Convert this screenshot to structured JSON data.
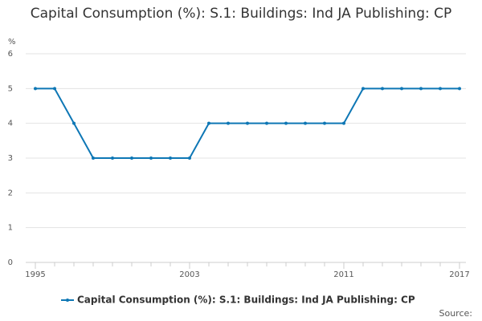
{
  "chart_data": {
    "type": "line",
    "title": "Capital Consumption (%): S.1: Buildings: Ind JA Publishing: CP",
    "y_label": "%",
    "x": [
      1995,
      1996,
      1997,
      1998,
      1999,
      2000,
      2001,
      2002,
      2003,
      2004,
      2005,
      2006,
      2007,
      2008,
      2009,
      2010,
      2011,
      2012,
      2013,
      2014,
      2015,
      2016,
      2017
    ],
    "series": [
      {
        "name": "Capital Consumption (%): S.1: Buildings: Ind JA Publishing: CP",
        "color": "#0e77b5",
        "values": [
          5,
          5,
          4,
          3,
          3,
          3,
          3,
          3,
          3,
          4,
          4,
          4,
          4,
          4,
          4,
          4,
          4,
          5,
          5,
          5,
          5,
          5,
          5
        ]
      }
    ],
    "xlim": [
      1995,
      2017
    ],
    "xticks": [
      1995,
      2003,
      2011,
      2017
    ],
    "ylim": [
      0,
      6
    ],
    "yticks": [
      0,
      1,
      2,
      3,
      4,
      5,
      6
    ],
    "grid": true,
    "source_label": "Source:"
  }
}
